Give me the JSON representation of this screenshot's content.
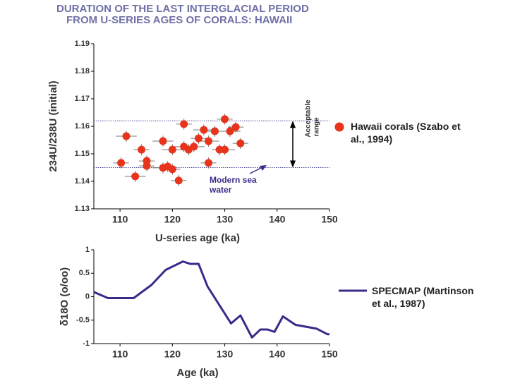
{
  "chart_data": [
    {
      "type": "scatter",
      "title": [
        "DURATION OF THE LAST INTERGLACIAL PERIOD",
        "FROM U-SERIES AGES OF CORALS: HAWAII"
      ],
      "x_label": "U-series age (ka)",
      "y_label": "234U/238U (initial)",
      "xlim": [
        105,
        150
      ],
      "xticks": [
        110,
        120,
        130,
        140,
        150
      ],
      "ylim": [
        1.13,
        1.19
      ],
      "yticks": [
        1.13,
        1.14,
        1.15,
        1.16,
        1.17,
        1.18,
        1.19
      ],
      "hlines": [
        1.162,
        1.145
      ],
      "annotations": [
        "Acceptable",
        "range",
        "Modern sea",
        "water"
      ],
      "series": [
        {
          "name": "Hawaii corals (Szabo et al., 1994)",
          "color": "#e8341c",
          "x": [
            111.2,
            110.2,
            112.9,
            114.1,
            115.1,
            115.1,
            118.2,
            118.2,
            119.1,
            120.0,
            120.0,
            121.2,
            122.2,
            122.2,
            123.1,
            124.1,
            125.0,
            126.0,
            126.9,
            126.9,
            128.1,
            129.0,
            130.0,
            130.0,
            131.0,
            132.1,
            133.0
          ],
          "values": [
            1.1564,
            1.1467,
            1.1418,
            1.1515,
            1.1474,
            1.1456,
            1.1546,
            1.1449,
            1.1454,
            1.1515,
            1.1444,
            1.1403,
            1.1608,
            1.1526,
            1.1515,
            1.1526,
            1.1556,
            1.1587,
            1.1546,
            1.1467,
            1.1582,
            1.1515,
            1.1515,
            1.1626,
            1.1582,
            1.1597,
            1.1538
          ],
          "xerr": [
            2,
            1.5,
            2,
            1.5,
            1.5,
            1.5,
            2,
            2,
            1.5,
            2,
            1.5,
            1.5,
            1.5,
            2,
            1.5,
            2,
            1.5,
            2,
            2,
            1.5,
            2,
            1.5,
            2,
            1.5,
            2,
            1.5,
            1.5
          ],
          "yerr": [
            0.002,
            0.002,
            0.002,
            0.002,
            0.002,
            0.002,
            0.002,
            0.002,
            0.002,
            0.002,
            0.002,
            0.002,
            0.002,
            0.002,
            0.002,
            0.002,
            0.002,
            0.002,
            0.002,
            0.002,
            0.002,
            0.002,
            0.002,
            0.002,
            0.002,
            0.002,
            0.002
          ]
        }
      ]
    },
    {
      "type": "line",
      "x_label": "Age (ka)",
      "y_label": "δ18O (o/oo)",
      "xlim": [
        105,
        150
      ],
      "xticks": [
        110,
        120,
        130,
        140,
        150
      ],
      "ylim": [
        -1,
        1
      ],
      "yticks": [
        -1,
        -0.5,
        0,
        0.5,
        1
      ],
      "series": [
        {
          "name": "SPECMAP (Martinson et al., 1987)",
          "color": "#3a2a8a",
          "x": [
            105,
            107.7,
            112.6,
            116,
            118.7,
            122,
            123.4,
            125,
            126.7,
            131.2,
            133,
            135.2,
            136.8,
            138.2,
            139.5,
            141.1,
            143.5,
            147.5,
            149.6,
            150
          ],
          "values": [
            0.1,
            -0.03,
            -0.03,
            0.25,
            0.57,
            0.75,
            0.7,
            0.7,
            0.22,
            -0.57,
            -0.4,
            -0.87,
            -0.7,
            -0.7,
            -0.75,
            -0.42,
            -0.6,
            -0.68,
            -0.8,
            -0.8
          ]
        }
      ]
    }
  ]
}
